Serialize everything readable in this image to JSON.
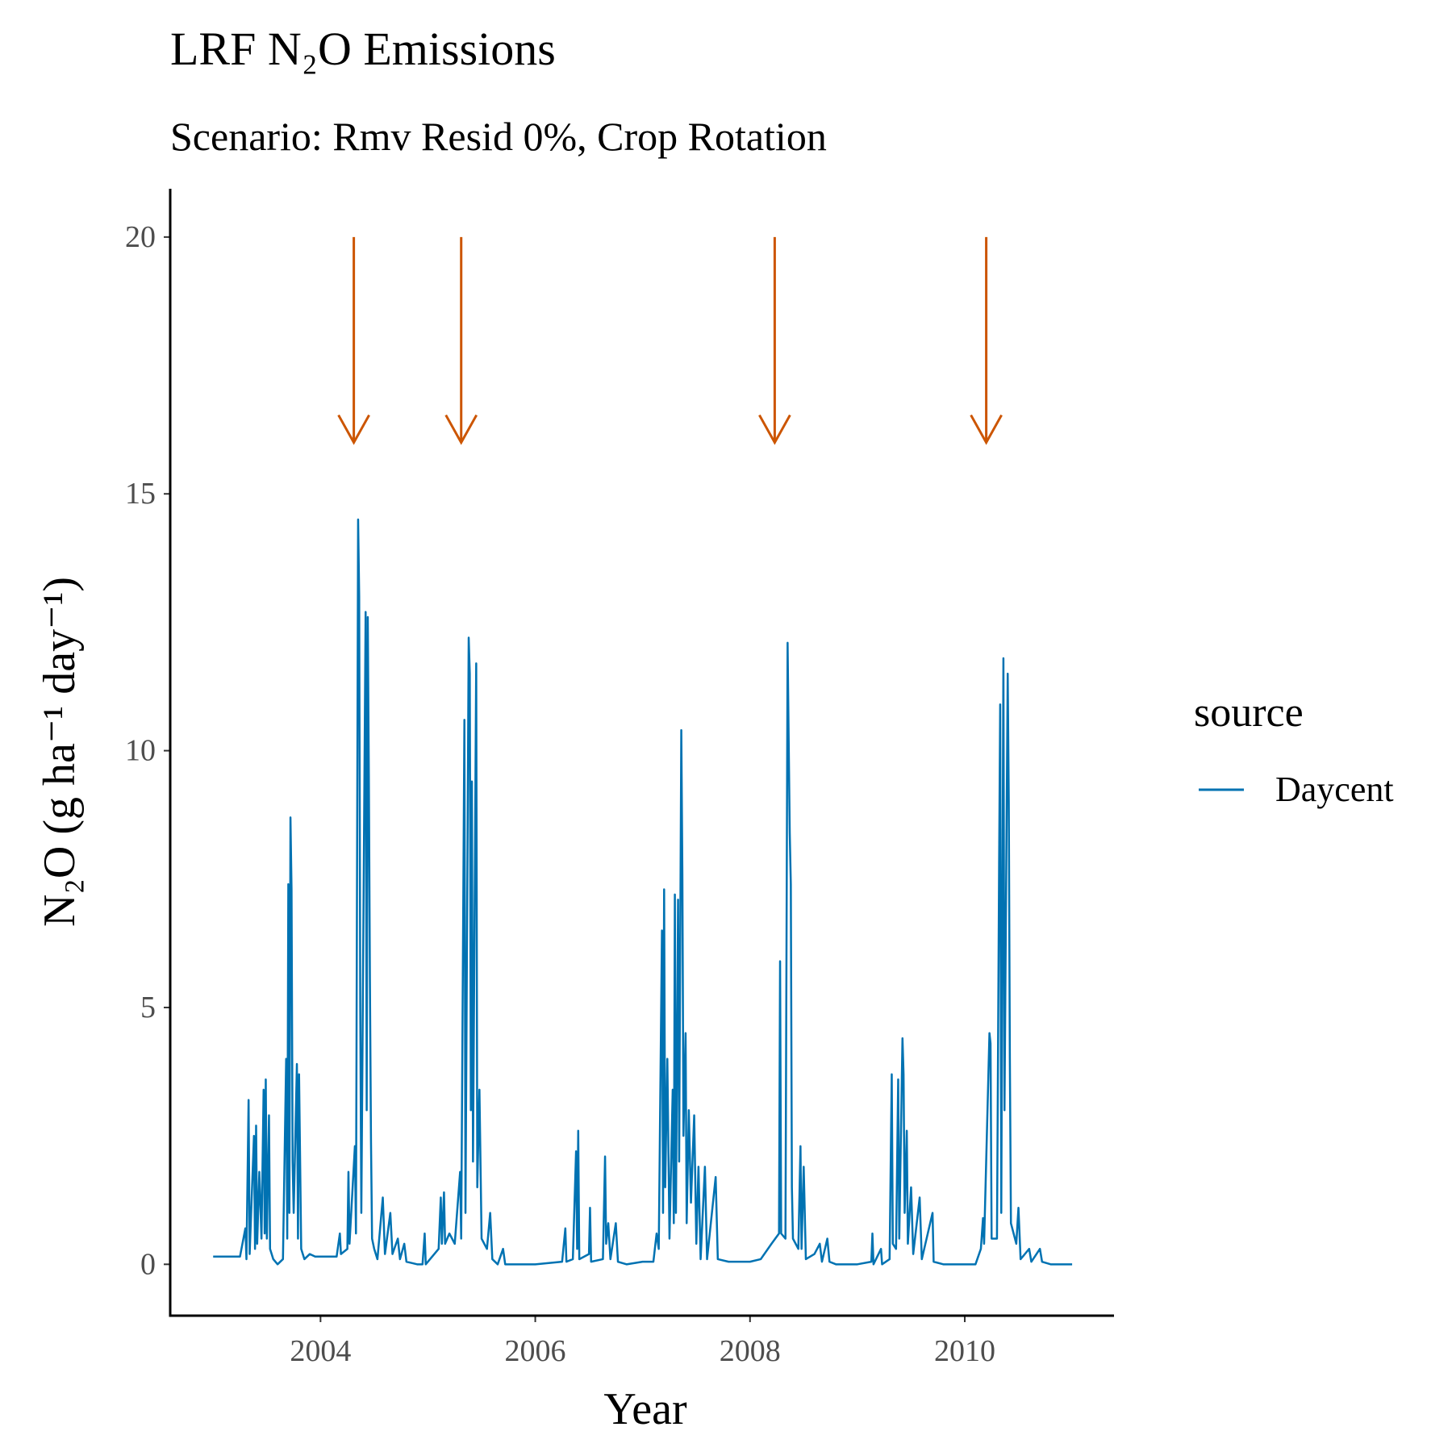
{
  "chart_data": {
    "type": "line",
    "title": "LRF N₂O Emissions",
    "subtitle": "Scenario: Rmv Resid 0%, Crop Rotation",
    "x_label": "Year",
    "y_label": "N₂O (g ha⁻¹ day⁻¹)",
    "legend_title": "source",
    "legend_position": "right",
    "xlim": [
      2002.6,
      2011.39
    ],
    "xticks": [
      2004,
      2006,
      2008,
      2010
    ],
    "ylim": [
      -1,
      20.94
    ],
    "yticks": [
      0,
      5,
      10,
      15,
      20
    ],
    "arrows": {
      "color": "#cc5500",
      "x": [
        2004.31,
        2005.31,
        2008.23,
        2010.2
      ],
      "y_start": [
        20,
        20,
        20,
        20
      ],
      "y_end": [
        16,
        16,
        16,
        16
      ]
    },
    "series": [
      {
        "name": "Daycent",
        "color": "#0072b2",
        "x": [
          2003.0,
          2003.25,
          2003.3,
          2003.31,
          2003.33,
          2003.34,
          2003.38,
          2003.39,
          2003.4,
          2003.41,
          2003.43,
          2003.45,
          2003.47,
          2003.48,
          2003.49,
          2003.5,
          2003.52,
          2003.53,
          2003.56,
          2003.6,
          2003.65,
          2003.68,
          2003.69,
          2003.7,
          2003.71,
          2003.72,
          2003.73,
          2003.74,
          2003.75,
          2003.78,
          2003.79,
          2003.8,
          2003.82,
          2003.85,
          2003.9,
          2003.95,
          2004.0,
          2004.15,
          2004.18,
          2004.19,
          2004.25,
          2004.26,
          2004.27,
          2004.32,
          2004.33,
          2004.35,
          2004.36,
          2004.37,
          2004.38,
          2004.42,
          2004.43,
          2004.44,
          2004.45,
          2004.46,
          2004.47,
          2004.48,
          2004.5,
          2004.53,
          2004.58,
          2004.6,
          2004.65,
          2004.67,
          2004.72,
          2004.74,
          2004.78,
          2004.8,
          2004.9,
          2004.95,
          2004.97,
          2004.98,
          2005.1,
          2005.12,
          2005.13,
          2005.15,
          2005.16,
          2005.2,
          2005.25,
          2005.3,
          2005.31,
          2005.34,
          2005.35,
          2005.38,
          2005.39,
          2005.4,
          2005.41,
          2005.42,
          2005.45,
          2005.46,
          2005.48,
          2005.5,
          2005.55,
          2005.58,
          2005.6,
          2005.65,
          2005.7,
          2005.72,
          2006.0,
          2006.25,
          2006.28,
          2006.29,
          2006.35,
          2006.38,
          2006.39,
          2006.4,
          2006.41,
          2006.5,
          2006.51,
          2006.52,
          2006.63,
          2006.65,
          2006.66,
          2006.68,
          2006.7,
          2006.75,
          2006.77,
          2006.85,
          2007.0,
          2007.1,
          2007.13,
          2007.15,
          2007.18,
          2007.19,
          2007.2,
          2007.21,
          2007.23,
          2007.25,
          2007.28,
          2007.29,
          2007.3,
          2007.31,
          2007.33,
          2007.34,
          2007.36,
          2007.37,
          2007.38,
          2007.4,
          2007.41,
          2007.43,
          2007.45,
          2007.48,
          2007.5,
          2007.52,
          2007.54,
          2007.58,
          2007.6,
          2007.68,
          2007.7,
          2007.8,
          2008.0,
          2008.1,
          2008.2,
          2008.27,
          2008.28,
          2008.29,
          2008.33,
          2008.35,
          2008.36,
          2008.37,
          2008.38,
          2008.39,
          2008.4,
          2008.45,
          2008.47,
          2008.48,
          2008.5,
          2008.52,
          2008.6,
          2008.65,
          2008.67,
          2008.72,
          2008.74,
          2008.8,
          2009.0,
          2009.13,
          2009.14,
          2009.15,
          2009.22,
          2009.23,
          2009.3,
          2009.32,
          2009.33,
          2009.36,
          2009.38,
          2009.39,
          2009.42,
          2009.43,
          2009.44,
          2009.46,
          2009.47,
          2009.5,
          2009.52,
          2009.58,
          2009.6,
          2009.7,
          2009.71,
          2009.8,
          2010.0,
          2010.1,
          2010.15,
          2010.17,
          2010.18,
          2010.23,
          2010.24,
          2010.25,
          2010.3,
          2010.32,
          2010.33,
          2010.34,
          2010.36,
          2010.37,
          2010.4,
          2010.41,
          2010.42,
          2010.43,
          2010.48,
          2010.5,
          2010.52,
          2010.6,
          2010.62,
          2010.7,
          2010.72,
          2010.8,
          2011.0
        ],
        "values": [
          0.15,
          0.15,
          0.7,
          0.1,
          3.2,
          0.2,
          2.5,
          0.3,
          2.7,
          0.4,
          1.8,
          0.5,
          3.4,
          0.6,
          3.6,
          0.5,
          2.9,
          0.3,
          0.1,
          0.0,
          0.1,
          4.0,
          0.5,
          7.4,
          1.0,
          8.7,
          7.3,
          2.0,
          1.0,
          3.9,
          0.5,
          3.7,
          0.3,
          0.1,
          0.2,
          0.15,
          0.15,
          0.15,
          0.6,
          0.2,
          0.3,
          1.8,
          0.4,
          2.3,
          0.6,
          14.5,
          13.0,
          5.0,
          1.0,
          12.7,
          3.0,
          12.6,
          9.5,
          5.5,
          2.4,
          0.5,
          0.3,
          0.1,
          1.3,
          0.2,
          1.0,
          0.2,
          0.5,
          0.1,
          0.4,
          0.05,
          0.0,
          0.0,
          0.6,
          0.0,
          0.3,
          1.3,
          0.4,
          1.4,
          0.4,
          0.6,
          0.4,
          1.8,
          0.5,
          10.6,
          1.0,
          12.2,
          11.5,
          3.0,
          9.4,
          2.0,
          11.7,
          1.5,
          3.4,
          0.5,
          0.3,
          1.0,
          0.1,
          0.0,
          0.3,
          0.0,
          0.0,
          0.05,
          0.7,
          0.05,
          0.1,
          2.2,
          0.3,
          2.6,
          0.1,
          0.2,
          1.1,
          0.05,
          0.1,
          2.1,
          0.4,
          0.8,
          0.1,
          0.8,
          0.05,
          0.0,
          0.05,
          0.05,
          0.6,
          0.3,
          6.5,
          1.0,
          7.3,
          1.5,
          4.0,
          0.5,
          3.4,
          0.8,
          7.2,
          1.0,
          7.1,
          2.0,
          10.4,
          7.6,
          2.5,
          4.5,
          0.8,
          3.0,
          1.2,
          2.9,
          0.4,
          1.9,
          0.1,
          1.9,
          0.1,
          1.7,
          0.1,
          0.05,
          0.05,
          0.1,
          0.4,
          0.6,
          5.9,
          0.6,
          0.5,
          12.1,
          10.2,
          8.4,
          7.4,
          1.5,
          0.5,
          0.3,
          2.3,
          0.3,
          1.9,
          0.1,
          0.2,
          0.4,
          0.05,
          0.5,
          0.05,
          0.0,
          0.0,
          0.05,
          0.6,
          0.0,
          0.3,
          0.0,
          0.1,
          3.7,
          0.4,
          0.3,
          3.6,
          0.5,
          4.4,
          3.7,
          1.0,
          2.6,
          0.4,
          1.5,
          0.2,
          1.3,
          0.1,
          1.0,
          0.05,
          0.0,
          0.0,
          0.0,
          0.3,
          0.9,
          0.4,
          4.5,
          4.3,
          0.5,
          0.5,
          7.8,
          10.9,
          1.0,
          11.8,
          3.0,
          11.5,
          9.0,
          4.0,
          0.8,
          0.4,
          1.1,
          0.1,
          0.3,
          0.05,
          0.3,
          0.05,
          0.0,
          0.0
        ]
      }
    ]
  }
}
